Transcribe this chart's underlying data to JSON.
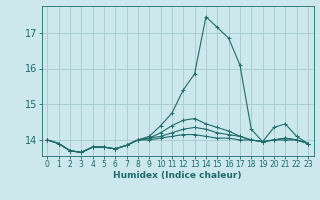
{
  "xlabel": "Humidex (Indice chaleur)",
  "background_color": "#cce8ec",
  "grid_color": "#aacdd4",
  "line_color": "#1e6b6b",
  "x_ticks": [
    0,
    1,
    2,
    3,
    4,
    5,
    6,
    7,
    8,
    9,
    10,
    11,
    12,
    13,
    14,
    15,
    16,
    17,
    18,
    19,
    20,
    21,
    22,
    23
  ],
  "y_ticks": [
    14,
    15,
    16,
    17
  ],
  "ylim": [
    13.55,
    17.75
  ],
  "xlim": [
    -0.5,
    23.5
  ],
  "series": [
    [
      14.0,
      13.9,
      13.7,
      13.65,
      13.8,
      13.8,
      13.75,
      13.85,
      14.0,
      14.1,
      14.4,
      14.75,
      15.4,
      15.85,
      17.45,
      17.15,
      16.85,
      16.1,
      14.3,
      13.95,
      14.35,
      14.45,
      14.1,
      13.9
    ],
    [
      14.0,
      13.9,
      13.7,
      13.65,
      13.8,
      13.8,
      13.75,
      13.85,
      14.0,
      14.05,
      14.2,
      14.4,
      14.55,
      14.6,
      14.45,
      14.35,
      14.25,
      14.1,
      14.0,
      13.95,
      14.0,
      14.05,
      14.0,
      13.9
    ],
    [
      14.0,
      13.9,
      13.7,
      13.65,
      13.8,
      13.8,
      13.75,
      13.85,
      14.0,
      14.05,
      14.1,
      14.2,
      14.3,
      14.35,
      14.3,
      14.2,
      14.15,
      14.1,
      14.0,
      13.95,
      14.0,
      14.05,
      14.0,
      13.9
    ],
    [
      14.0,
      13.9,
      13.7,
      13.65,
      13.8,
      13.8,
      13.75,
      13.85,
      14.0,
      14.0,
      14.05,
      14.1,
      14.15,
      14.15,
      14.1,
      14.05,
      14.05,
      14.0,
      14.0,
      13.95,
      14.0,
      14.0,
      14.0,
      13.9
    ]
  ]
}
